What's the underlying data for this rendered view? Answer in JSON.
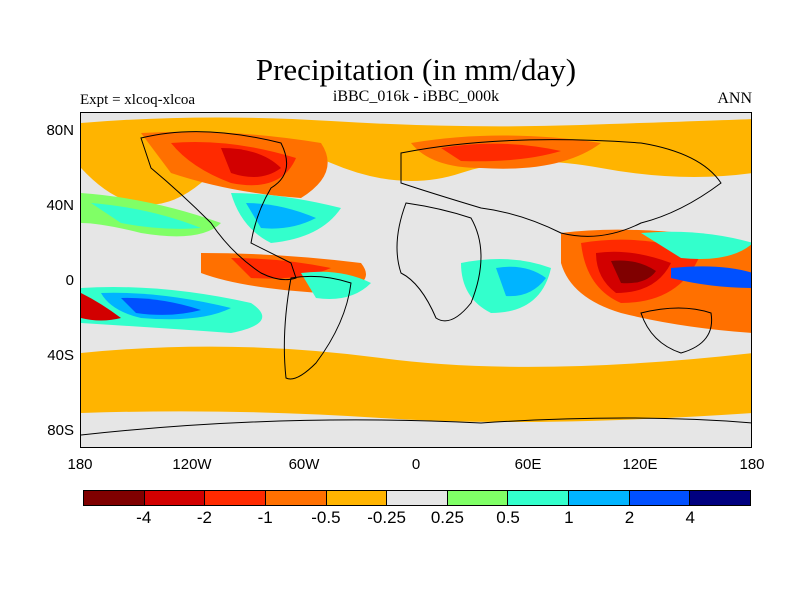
{
  "title": "Precipitation (in mm/day)",
  "experiment": "Expt = xlcoq-xlcoa",
  "subtitle": "iBBC_016k - iBBC_000k",
  "season": "ANN",
  "y_ticks": [
    "80N",
    "40N",
    "0",
    "40S",
    "80S"
  ],
  "x_ticks": [
    "180",
    "120W",
    "60W",
    "0",
    "60E",
    "120E",
    "180"
  ],
  "colorbar": {
    "labels": [
      "-4",
      "-2",
      "-1",
      "-0.5",
      "-0.25",
      "0.25",
      "0.5",
      "1",
      "2",
      "4"
    ],
    "colors": [
      "#800000",
      "#d20000",
      "#ff2a00",
      "#ff7000",
      "#ffb400",
      "#e6e6e6",
      "#80ff66",
      "#33ffcc",
      "#00b4ff",
      "#0050ff",
      "#000080"
    ]
  },
  "chart_data": {
    "type": "heatmap",
    "title": "Precipitation (in mm/day)",
    "xlim": [
      -180,
      180
    ],
    "ylim": [
      -90,
      90
    ],
    "levels": [
      -4,
      -2,
      -1,
      -0.5,
      -0.25,
      0.25,
      0.5,
      1,
      2,
      4
    ]
  }
}
